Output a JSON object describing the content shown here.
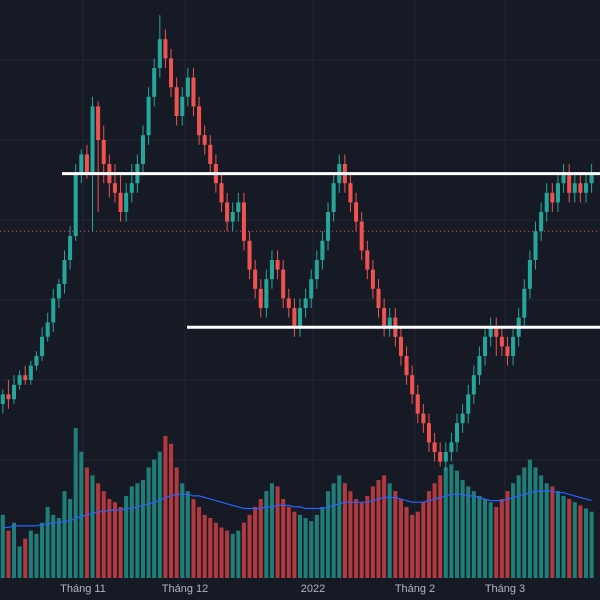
{
  "colors": {
    "background": "#161a25",
    "grid": "#232734",
    "up": "#26a69a",
    "down": "#ef5350",
    "up_volume": "#1f7f78",
    "down_volume": "#b23a3f",
    "ma_line": "#2962ff",
    "level_line": "#ffffff",
    "last_price_line": "#ef5350",
    "axis_text": "#b2b5be"
  },
  "chart_data": {
    "type": "candlestick",
    "x_tick_labels": [
      "Tháng 11",
      "Tháng 12",
      "2022",
      "Tháng 2",
      "Tháng 3"
    ],
    "y_range": [
      0,
      100
    ],
    "grid": true,
    "horizontal_levels": [
      68,
      36
    ],
    "dotted_reference_level": 56,
    "candles": [
      [
        20,
        22,
        18,
        23
      ],
      [
        22,
        21,
        19,
        25
      ],
      [
        21,
        24,
        20,
        26
      ],
      [
        24,
        26,
        23,
        27
      ],
      [
        26,
        25,
        24,
        28
      ],
      [
        25,
        28,
        24,
        29
      ],
      [
        28,
        30,
        27,
        31
      ],
      [
        30,
        34,
        29,
        36
      ],
      [
        34,
        37,
        33,
        39
      ],
      [
        37,
        42,
        35,
        44
      ],
      [
        42,
        45,
        40,
        46
      ],
      [
        45,
        50,
        43,
        52
      ],
      [
        50,
        55,
        48,
        57
      ],
      [
        55,
        68,
        54,
        70
      ],
      [
        68,
        72,
        66,
        73
      ],
      [
        72,
        68,
        67,
        74
      ],
      [
        68,
        82,
        56,
        84
      ],
      [
        82,
        75,
        60,
        83
      ],
      [
        75,
        70,
        66,
        78
      ],
      [
        70,
        66,
        63,
        72
      ],
      [
        66,
        64,
        62,
        70
      ],
      [
        64,
        60,
        58,
        68
      ],
      [
        60,
        64,
        58,
        66
      ],
      [
        64,
        66,
        62,
        70
      ],
      [
        66,
        70,
        64,
        72
      ],
      [
        70,
        76,
        68,
        78
      ],
      [
        76,
        84,
        74,
        86
      ],
      [
        84,
        90,
        82,
        92
      ],
      [
        90,
        96,
        88,
        101
      ],
      [
        96,
        92,
        90,
        98
      ],
      [
        92,
        86,
        84,
        94
      ],
      [
        86,
        80,
        78,
        88
      ],
      [
        80,
        84,
        78,
        86
      ],
      [
        84,
        88,
        82,
        90
      ],
      [
        88,
        82,
        80,
        90
      ],
      [
        82,
        76,
        74,
        84
      ],
      [
        76,
        74,
        72,
        78
      ],
      [
        74,
        70,
        68,
        76
      ],
      [
        70,
        66,
        64,
        72
      ],
      [
        66,
        62,
        60,
        68
      ],
      [
        62,
        58,
        56,
        64
      ],
      [
        58,
        60,
        56,
        62
      ],
      [
        60,
        62,
        58,
        64
      ],
      [
        62,
        54,
        52,
        64
      ],
      [
        54,
        48,
        46,
        56
      ],
      [
        48,
        44,
        42,
        50
      ],
      [
        44,
        40,
        38,
        46
      ],
      [
        40,
        46,
        38,
        48
      ],
      [
        46,
        50,
        44,
        52
      ],
      [
        50,
        48,
        46,
        52
      ],
      [
        48,
        42,
        40,
        50
      ],
      [
        42,
        40,
        38,
        44
      ],
      [
        40,
        36,
        34,
        42
      ],
      [
        36,
        40,
        34,
        42
      ],
      [
        40,
        42,
        38,
        44
      ],
      [
        42,
        46,
        40,
        48
      ],
      [
        46,
        50,
        44,
        52
      ],
      [
        50,
        54,
        48,
        56
      ],
      [
        54,
        60,
        52,
        62
      ],
      [
        60,
        66,
        58,
        68
      ],
      [
        66,
        70,
        64,
        72
      ],
      [
        70,
        66,
        64,
        72
      ],
      [
        66,
        62,
        60,
        68
      ],
      [
        62,
        58,
        56,
        64
      ],
      [
        58,
        52,
        50,
        60
      ],
      [
        52,
        48,
        46,
        54
      ],
      [
        48,
        44,
        42,
        50
      ],
      [
        44,
        40,
        38,
        46
      ],
      [
        40,
        36,
        34,
        42
      ],
      [
        36,
        38,
        34,
        40
      ],
      [
        38,
        34,
        32,
        40
      ],
      [
        34,
        30,
        28,
        36
      ],
      [
        30,
        26,
        24,
        32
      ],
      [
        26,
        22,
        20,
        28
      ],
      [
        22,
        18,
        16,
        24
      ],
      [
        18,
        16,
        14,
        20
      ],
      [
        16,
        12,
        10,
        18
      ],
      [
        12,
        10,
        8,
        14
      ],
      [
        10,
        8,
        7,
        12
      ],
      [
        8,
        10,
        6,
        12
      ],
      [
        10,
        12,
        8,
        14
      ],
      [
        12,
        16,
        10,
        18
      ],
      [
        16,
        18,
        14,
        20
      ],
      [
        18,
        22,
        16,
        24
      ],
      [
        22,
        26,
        20,
        28
      ],
      [
        26,
        30,
        24,
        32
      ],
      [
        30,
        34,
        28,
        36
      ],
      [
        34,
        36,
        32,
        38
      ],
      [
        36,
        34,
        30,
        38
      ],
      [
        34,
        32,
        30,
        36
      ],
      [
        32,
        30,
        28,
        34
      ],
      [
        30,
        34,
        28,
        36
      ],
      [
        34,
        38,
        32,
        40
      ],
      [
        38,
        44,
        36,
        46
      ],
      [
        44,
        50,
        42,
        52
      ],
      [
        50,
        56,
        48,
        58
      ],
      [
        56,
        60,
        54,
        62
      ],
      [
        60,
        64,
        58,
        66
      ],
      [
        64,
        62,
        60,
        66
      ],
      [
        62,
        66,
        60,
        68
      ],
      [
        66,
        68,
        64,
        70
      ],
      [
        68,
        64,
        62,
        70
      ],
      [
        64,
        66,
        62,
        68
      ],
      [
        66,
        64,
        62,
        68
      ],
      [
        64,
        66,
        62,
        68
      ],
      [
        66,
        68,
        64,
        70
      ]
    ],
    "volumes": [
      40,
      30,
      35,
      20,
      25,
      30,
      28,
      35,
      45,
      40,
      38,
      55,
      50,
      95,
      80,
      70,
      65,
      60,
      55,
      50,
      48,
      45,
      52,
      58,
      60,
      62,
      70,
      75,
      80,
      90,
      85,
      70,
      60,
      55,
      50,
      45,
      40,
      38,
      35,
      32,
      30,
      28,
      30,
      35,
      40,
      45,
      50,
      55,
      60,
      58,
      50,
      45,
      42,
      40,
      38,
      36,
      40,
      45,
      55,
      60,
      65,
      60,
      55,
      50,
      48,
      52,
      58,
      62,
      65,
      60,
      55,
      50,
      45,
      40,
      42,
      48,
      55,
      60,
      65,
      70,
      72,
      68,
      62,
      58,
      55,
      52,
      50,
      48,
      45,
      50,
      55,
      60,
      65,
      70,
      75,
      70,
      65,
      60,
      58,
      55,
      52,
      50,
      48,
      46,
      44,
      42
    ],
    "volume_ma": [
      32,
      32,
      33,
      33,
      33,
      33,
      33,
      34,
      34,
      35,
      35,
      36,
      36,
      38,
      39,
      40,
      41,
      42,
      42,
      43,
      43,
      43,
      44,
      44,
      45,
      46,
      47,
      48,
      49,
      51,
      52,
      53,
      53,
      53,
      52,
      52,
      51,
      50,
      49,
      48,
      47,
      46,
      45,
      44,
      44,
      44,
      44,
      45,
      45,
      46,
      46,
      46,
      45,
      45,
      44,
      44,
      44,
      44,
      45,
      46,
      47,
      48,
      48,
      48,
      48,
      48,
      49,
      50,
      51,
      51,
      51,
      50,
      49,
      48,
      48,
      48,
      49,
      50,
      51,
      52,
      53,
      53,
      53,
      52,
      52,
      51,
      50,
      49,
      49,
      49,
      50,
      51,
      52,
      53,
      54,
      55,
      55,
      55,
      55,
      54,
      54,
      53,
      52,
      51,
      50,
      49
    ]
  }
}
